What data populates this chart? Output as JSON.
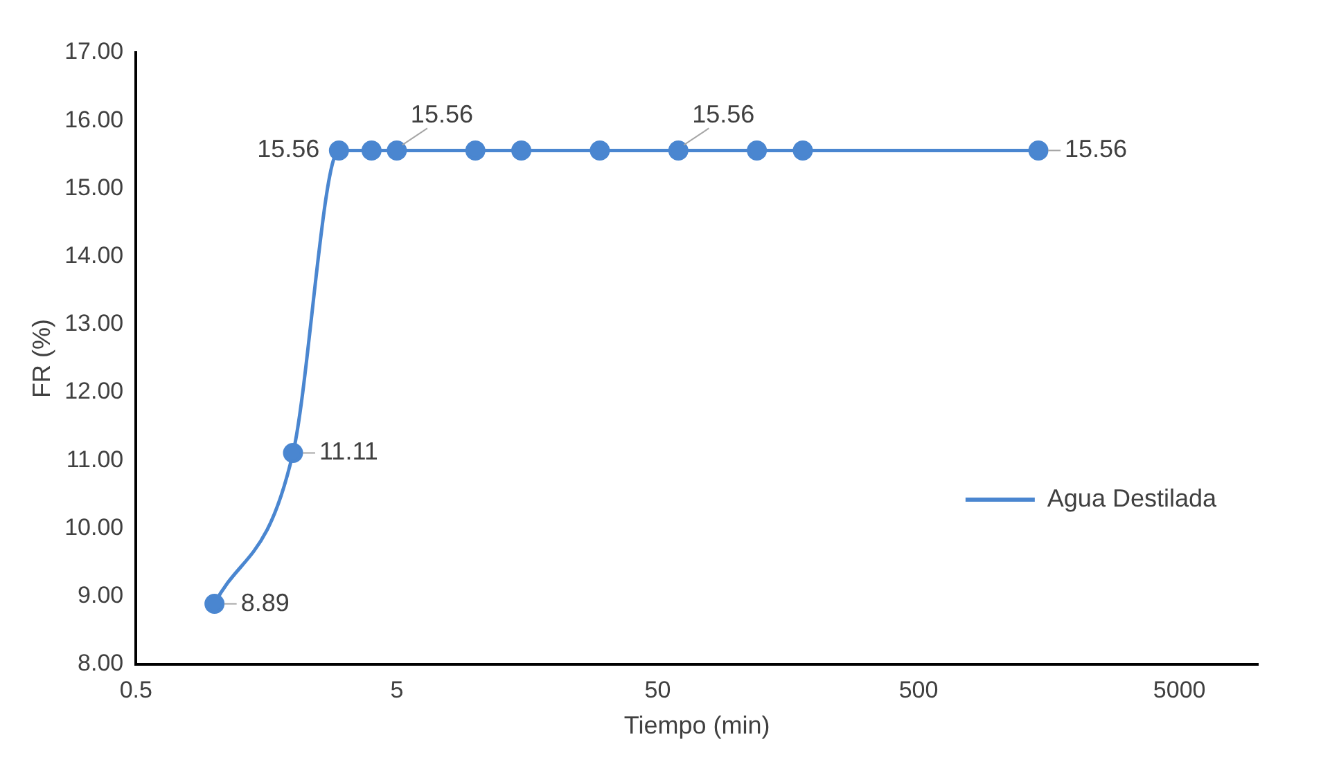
{
  "chart_data": {
    "type": "line",
    "xlabel": "Tiempo (min)",
    "ylabel": "FR (%)",
    "x": [
      1,
      2,
      3,
      4,
      5,
      10,
      15,
      30,
      60,
      120,
      180,
      1440
    ],
    "series": [
      {
        "name": "Agua Destilada",
        "color": "#4a86d0",
        "values": [
          8.89,
          11.11,
          15.56,
          15.56,
          15.56,
          15.56,
          15.56,
          15.56,
          15.56,
          15.56,
          15.56,
          15.56
        ],
        "value_labels": [
          "8.89",
          "11.11",
          "15.56",
          null,
          "15.56",
          null,
          null,
          null,
          "15.56",
          null,
          null,
          "15.56"
        ]
      }
    ],
    "log": "x",
    "xlim": [
      0.5,
      10000
    ],
    "xticks": [
      0.5,
      5,
      50,
      500,
      5000
    ],
    "ylim": [
      8,
      17
    ],
    "yticks": [
      {
        "value": 8,
        "label": "8.00"
      },
      {
        "value": 9,
        "label": "9.00"
      },
      {
        "value": 10,
        "label": "10.00"
      },
      {
        "value": 11,
        "label": "11.00"
      },
      {
        "value": 12,
        "label": "12.00"
      },
      {
        "value": 13,
        "label": "13.00"
      },
      {
        "value": 14,
        "label": "14.00"
      },
      {
        "value": 15,
        "label": "15.00"
      },
      {
        "value": 16,
        "label": "16.00"
      },
      {
        "value": 17,
        "label": "17.00"
      }
    ],
    "grid": false,
    "legend": "bottom right",
    "marker": "circle",
    "line_style": "solid"
  }
}
